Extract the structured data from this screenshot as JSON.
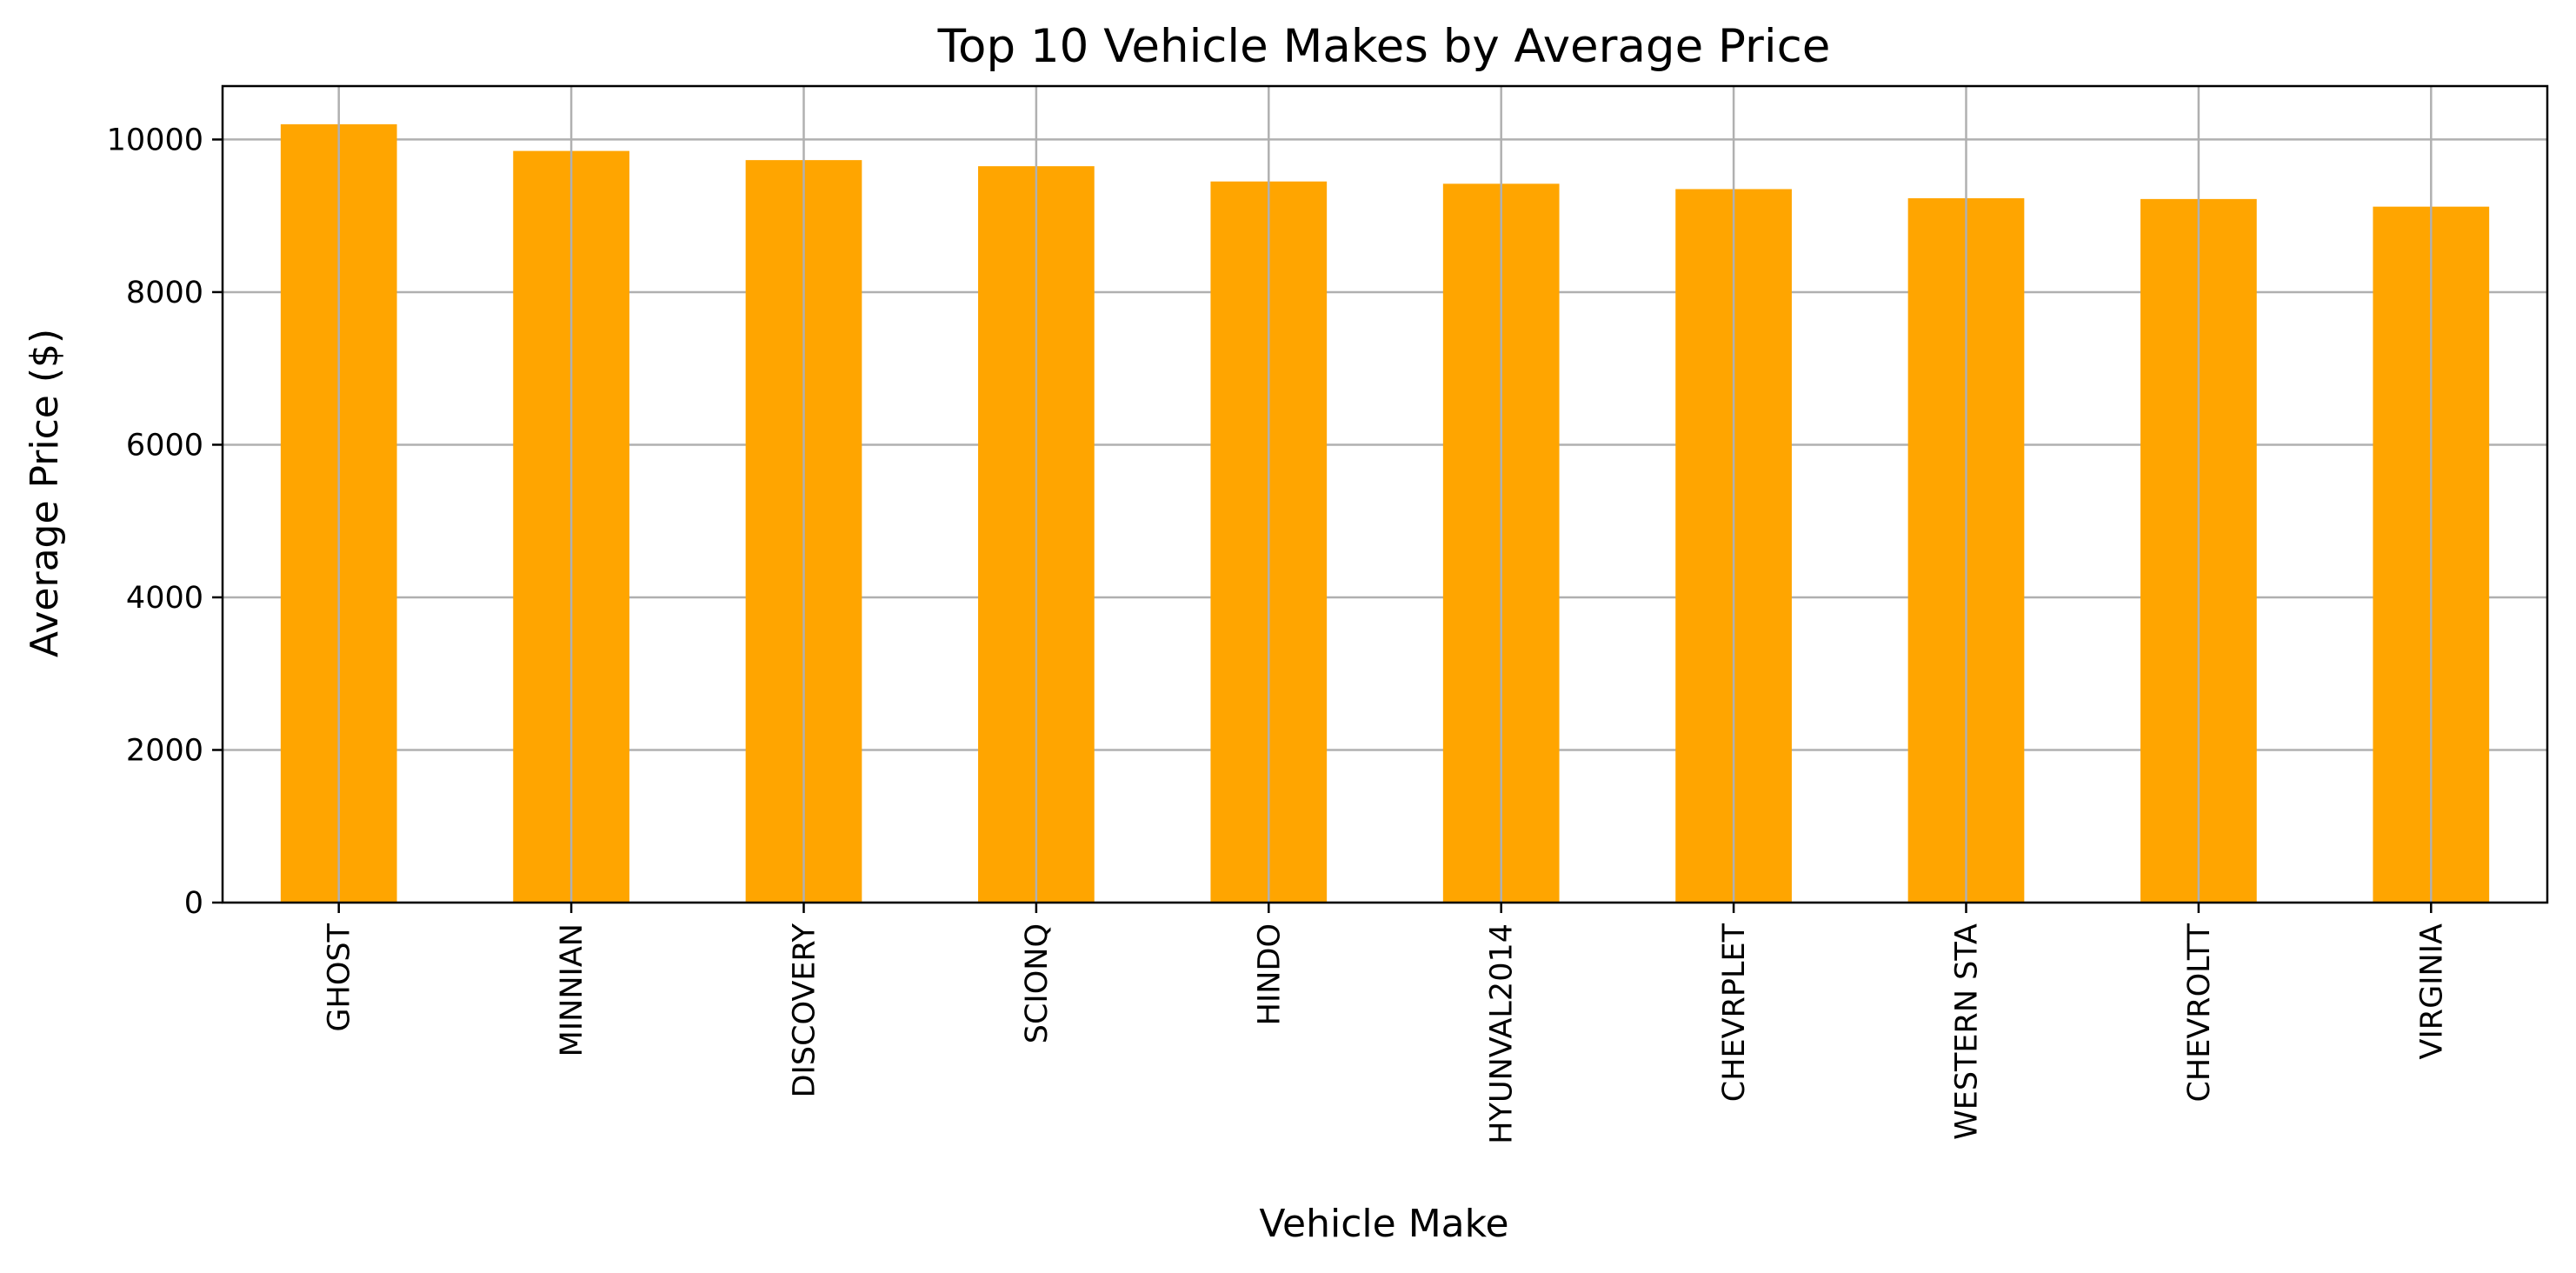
{
  "chart_data": {
    "type": "bar",
    "title": "Top 10 Vehicle Makes by Average Price",
    "xlabel": "Vehicle Make",
    "ylabel": "Average Price ($)",
    "categories": [
      "GHOST",
      "MINNIAN",
      "DISCOVERY",
      "SCIONQ",
      "HINDO",
      "HYUNVAL2014",
      "CHEVRPLET",
      "WESTERN STA",
      "CHEVROLTT",
      "VIRGINIA"
    ],
    "values": [
      10200,
      9850,
      9730,
      9650,
      9450,
      9420,
      9350,
      9230,
      9220,
      9120
    ],
    "ylim": [
      0,
      10700
    ],
    "yticks": [
      0,
      2000,
      4000,
      6000,
      8000,
      10000
    ],
    "grid": true,
    "bar_color": "#FFA500",
    "grid_color": "#B0B0B0"
  }
}
